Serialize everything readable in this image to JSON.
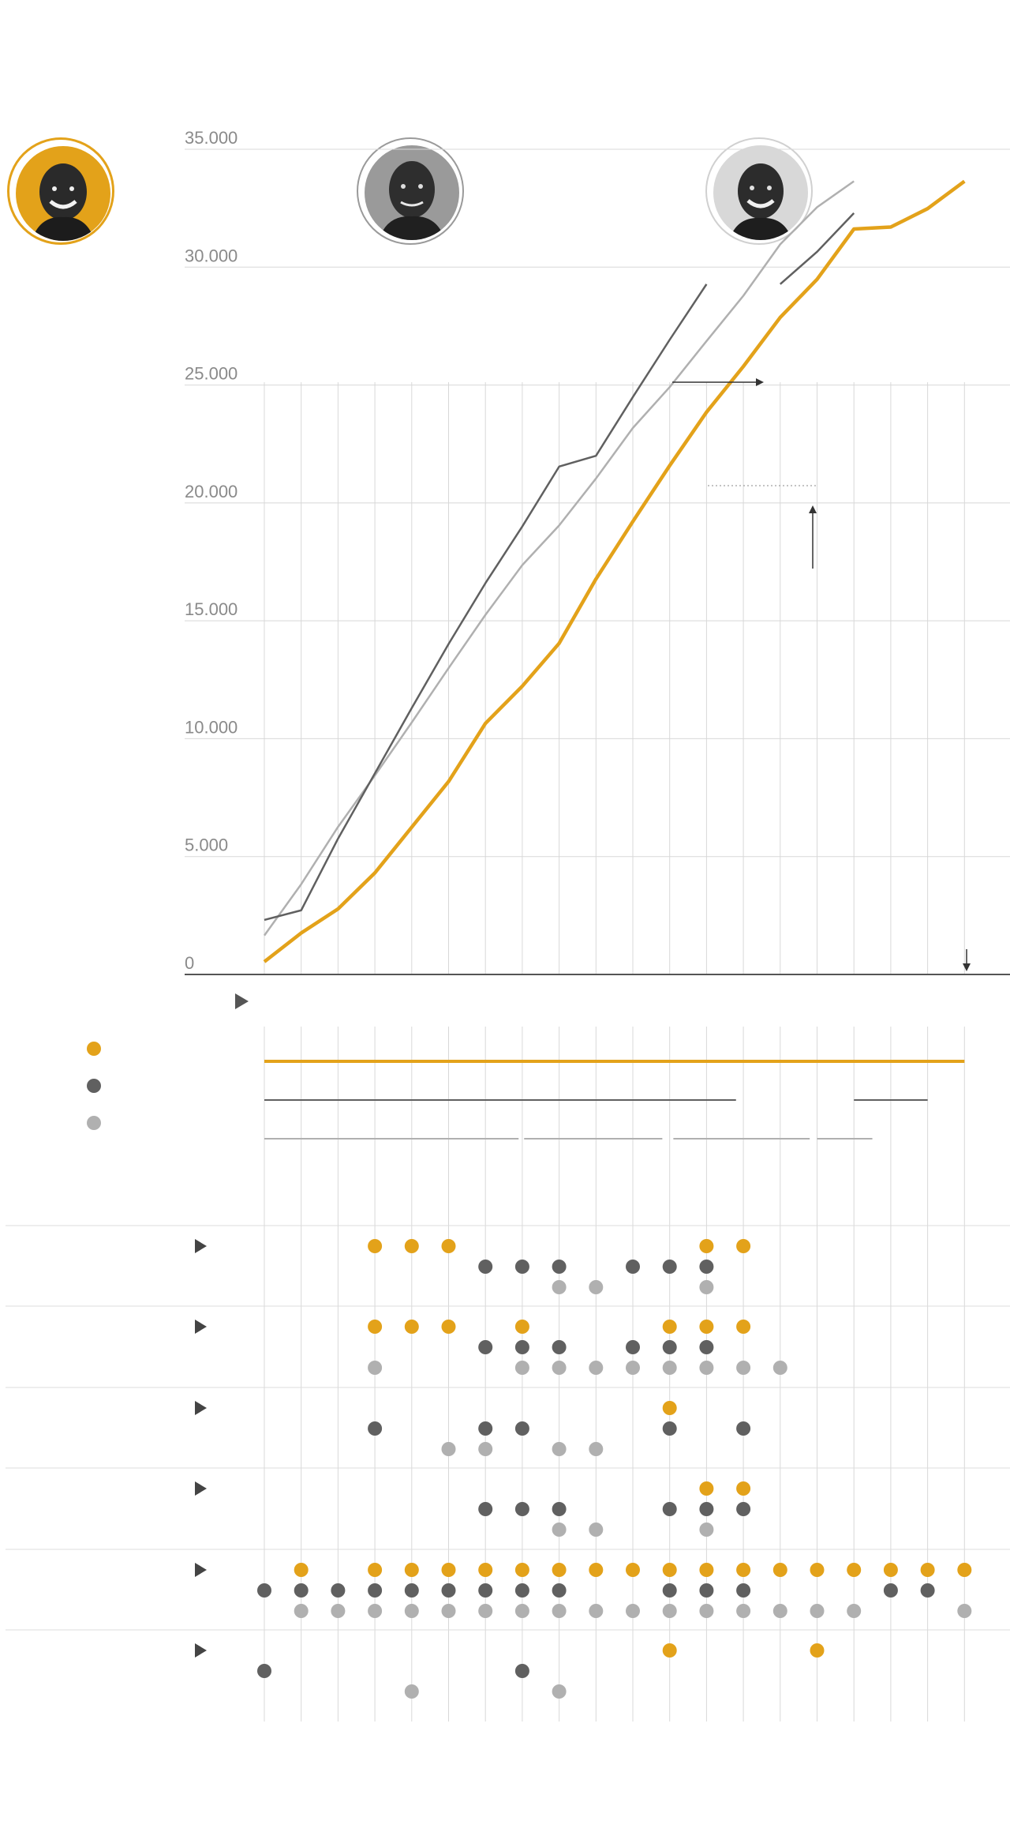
{
  "colors": {
    "kobe": "#e3a21a",
    "jordan": "#606060",
    "lebron": "#b0b0b0",
    "grid": "#d8d8d8",
    "axis": "#555555"
  },
  "players": [
    {
      "id": "kobe",
      "icon": "kobe-portrait-icon",
      "color": "#e3a21a"
    },
    {
      "id": "jordan",
      "icon": "jordan-portrait-icon",
      "color": "#606060"
    },
    {
      "id": "lebron",
      "icon": "lebron-portrait-icon",
      "color": "#b0b0b0"
    }
  ],
  "chart_data": {
    "type": "line",
    "y_ticks": [
      "35.000",
      "30.000",
      "25.000",
      "20.000",
      "15.000",
      "10.000",
      "5.000",
      "0"
    ],
    "ylim": [
      0,
      35000
    ],
    "grid": true,
    "seasons": 20,
    "series": [
      {
        "id": "kobe",
        "color": "#e3a21a",
        "values": [
          539,
          1759,
          2779,
          4308,
          6246,
          8184,
          10649,
          12226,
          14045,
          16774,
          19211,
          21583,
          23849,
          25790,
          27868,
          29484,
          31617,
          31700,
          32482,
          33643
        ]
      },
      {
        "id": "jordan",
        "color": "#606060",
        "values": [
          2313,
          2721,
          5762,
          8530,
          11299,
          14016,
          16596,
          19000,
          21541,
          21998,
          24489,
          26920,
          29277
        ],
        "continuation": {
          "start_index": 15,
          "values": [
            29277,
            30652,
            32292
          ]
        }
      },
      {
        "id": "lebron",
        "color": "#b0b0b0",
        "values": [
          1654,
          3827,
          6260,
          8439,
          10689,
          12993,
          15251,
          17362,
          19045,
          21036,
          23177,
          24913,
          26863,
          28787,
          30967,
          32543,
          33643
        ]
      }
    ],
    "careers": [
      {
        "id": "kobe",
        "segments": [
          [
            1,
            20
          ]
        ]
      },
      {
        "id": "jordan",
        "segments": [
          [
            1,
            13.8
          ],
          [
            17,
            19
          ]
        ]
      },
      {
        "id": "lebron",
        "segments": [
          [
            1,
            7.9
          ],
          [
            8.05,
            11.8
          ],
          [
            12.1,
            15.8
          ],
          [
            16,
            17.5
          ]
        ]
      }
    ],
    "dot_categories": [
      {
        "kobe": [
          4,
          5,
          6,
          13,
          14
        ],
        "jordan": [
          7,
          8,
          9,
          11,
          12,
          13
        ],
        "lebron": [
          9,
          10,
          13
        ]
      },
      {
        "kobe": [
          4,
          5,
          6,
          8,
          12,
          13,
          14
        ],
        "jordan": [
          7,
          8,
          9,
          11,
          12,
          13
        ],
        "lebron": [
          4,
          8,
          9,
          10,
          11,
          12,
          13,
          14,
          15
        ]
      },
      {
        "kobe": [
          12
        ],
        "jordan": [
          4,
          7,
          8,
          12,
          14
        ],
        "lebron": [
          6,
          7,
          9,
          10
        ]
      },
      {
        "kobe": [
          13,
          14
        ],
        "jordan": [
          7,
          8,
          9,
          12,
          13,
          14
        ],
        "lebron": [
          9,
          10,
          13
        ]
      },
      {
        "kobe": [
          2,
          4,
          5,
          6,
          7,
          8,
          9,
          10,
          11,
          12,
          13,
          14,
          15,
          16,
          17,
          18,
          19,
          20
        ],
        "jordan": [
          1,
          2,
          3,
          4,
          5,
          6,
          7,
          8,
          9,
          12,
          13,
          14,
          18,
          19
        ],
        "lebron": [
          2,
          3,
          4,
          5,
          6,
          7,
          8,
          9,
          10,
          11,
          12,
          13,
          14,
          15,
          16,
          17,
          20
        ]
      },
      {
        "kobe": [
          12,
          16
        ],
        "jordan": [
          1,
          8
        ],
        "lebron": [
          5,
          9
        ]
      }
    ]
  }
}
